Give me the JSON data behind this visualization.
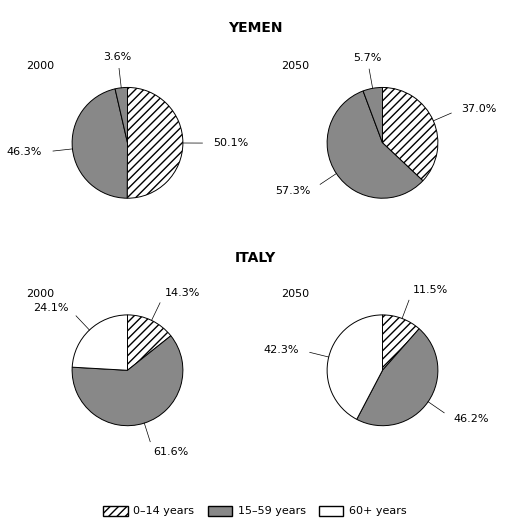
{
  "title_yemen": "YEMEN",
  "title_italy": "ITALY",
  "charts": {
    "yemen_2000": {
      "label": "2000",
      "values": [
        50.1,
        46.3,
        3.6
      ],
      "colors": [
        "hatch",
        "dark",
        "dark"
      ],
      "label_texts": [
        "50.1%",
        "46.3%",
        "3.6%"
      ],
      "startangle": 90,
      "counterclock": false
    },
    "yemen_2050": {
      "label": "2050",
      "values": [
        37.0,
        57.3,
        5.7
      ],
      "colors": [
        "hatch",
        "dark",
        "dark"
      ],
      "label_texts": [
        "37.0%",
        "57.3%",
        "5.7%"
      ],
      "startangle": 90,
      "counterclock": false
    },
    "italy_2000": {
      "label": "2000",
      "values": [
        14.3,
        61.6,
        24.1
      ],
      "colors": [
        "hatch",
        "dark",
        "white"
      ],
      "label_texts": [
        "14.3%",
        "61.6%",
        "24.1%"
      ],
      "startangle": 90,
      "counterclock": false
    },
    "italy_2050": {
      "label": "2050",
      "values": [
        11.5,
        46.2,
        42.3
      ],
      "colors": [
        "hatch",
        "dark",
        "white"
      ],
      "label_texts": [
        "11.5%",
        "46.2%",
        "42.3%"
      ],
      "startangle": 90,
      "counterclock": false
    }
  },
  "legend_labels": [
    "0–14 years",
    "15–59 years",
    "60+ years"
  ],
  "dark_color": "#888888",
  "hatch_pattern": "////",
  "label_fontsize": 8,
  "year_fontsize": 8,
  "title_fontsize": 10
}
